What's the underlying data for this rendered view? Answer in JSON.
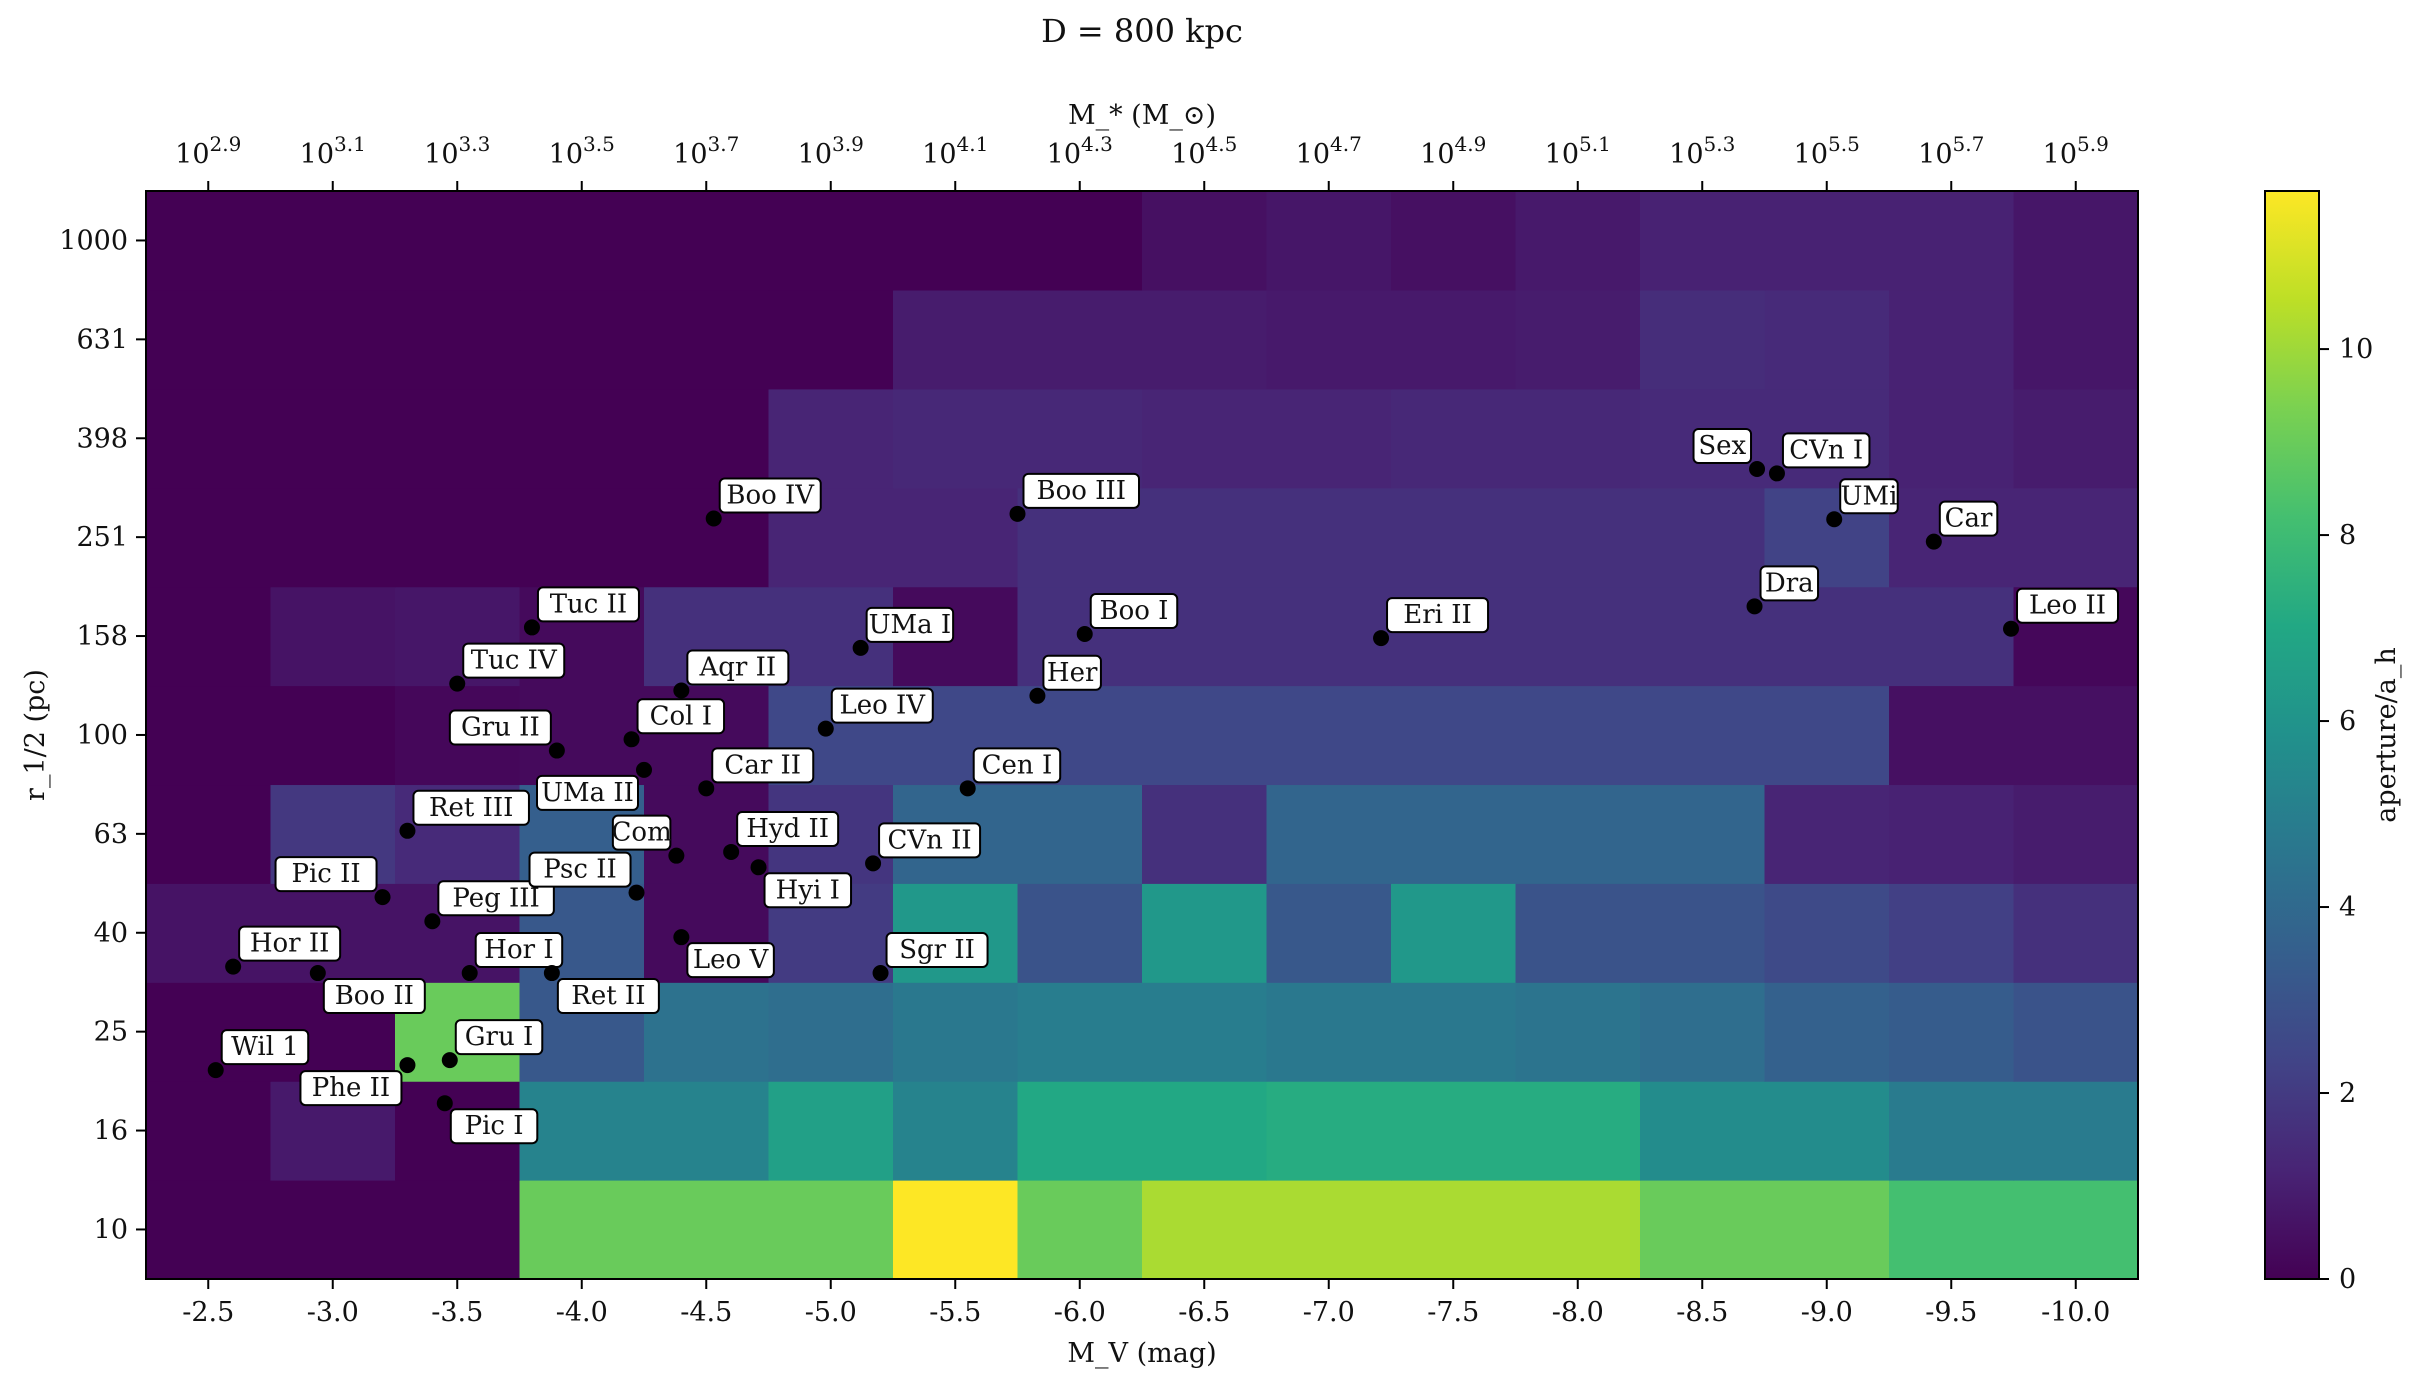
{
  "chart_data": {
    "type": "heatmap",
    "title": "D = 800 kpc",
    "xlabel": "M_V (mag)",
    "ylabel": "r_1/2 (pc)",
    "top_xlabel": "M_* (M_⊙)",
    "colorbar_label": "aperture/a_h",
    "colorbar_range": [
      0,
      11.7
    ],
    "colorbar_ticks": [
      "0",
      "2",
      "4",
      "6",
      "8",
      "10"
    ],
    "xlim": [
      -2.25,
      -10.25
    ],
    "x_ticks": [
      {
        "v": -2.5,
        "label": "-2.5"
      },
      {
        "v": -3.0,
        "label": "-3.0"
      },
      {
        "v": -3.5,
        "label": "-3.5"
      },
      {
        "v": -4.0,
        "label": "-4.0"
      },
      {
        "v": -4.5,
        "label": "-4.5"
      },
      {
        "v": -5.0,
        "label": "-5.0"
      },
      {
        "v": -5.5,
        "label": "-5.5"
      },
      {
        "v": -6.0,
        "label": "-6.0"
      },
      {
        "v": -6.5,
        "label": "-6.5"
      },
      {
        "v": -7.0,
        "label": "-7.0"
      },
      {
        "v": -7.5,
        "label": "-7.5"
      },
      {
        "v": -8.0,
        "label": "-8.0"
      },
      {
        "v": -8.5,
        "label": "-8.5"
      },
      {
        "v": -9.0,
        "label": "-9.0"
      },
      {
        "v": -9.5,
        "label": "-9.5"
      },
      {
        "v": -10.0,
        "label": "-10.0"
      }
    ],
    "top_ticks": [
      {
        "v": -2.5,
        "exp": "2.9"
      },
      {
        "v": -3.0,
        "exp": "3.1"
      },
      {
        "v": -3.5,
        "exp": "3.3"
      },
      {
        "v": -4.0,
        "exp": "3.5"
      },
      {
        "v": -4.5,
        "exp": "3.7"
      },
      {
        "v": -5.0,
        "exp": "3.9"
      },
      {
        "v": -5.5,
        "exp": "4.1"
      },
      {
        "v": -6.0,
        "exp": "4.3"
      },
      {
        "v": -6.5,
        "exp": "4.5"
      },
      {
        "v": -7.0,
        "exp": "4.7"
      },
      {
        "v": -7.5,
        "exp": "4.9"
      },
      {
        "v": -8.0,
        "exp": "5.1"
      },
      {
        "v": -8.5,
        "exp": "5.3"
      },
      {
        "v": -9.0,
        "exp": "5.5"
      },
      {
        "v": -9.5,
        "exp": "5.7"
      },
      {
        "v": -10.0,
        "exp": "5.9"
      }
    ],
    "y_scale": "log",
    "ylim": [
      7.94,
      1259
    ],
    "y_ticks": [
      "10",
      "16",
      "25",
      "40",
      "63",
      "100",
      "158",
      "251",
      "398",
      "631",
      "1000"
    ],
    "y_tick_values": [
      10,
      15.85,
      25.12,
      39.81,
      63.1,
      100,
      158.5,
      251.2,
      398.1,
      631,
      1000
    ],
    "col_edges": [
      -2.25,
      -2.75,
      -3.25,
      -3.75,
      -4.25,
      -4.75,
      -5.25,
      -5.75,
      -6.25,
      -6.75,
      -7.25,
      -7.75,
      -8.25,
      -8.75,
      -9.25,
      -9.75,
      -10.25
    ],
    "row_edges": [
      7.94,
      12.59,
      19.95,
      31.62,
      50.12,
      79.43,
      125.9,
      199.5,
      316.2,
      501.2,
      794.3,
      1259
    ],
    "z": [
      [
        0.0,
        0.0,
        0.0,
        9.0,
        9.0,
        9.0,
        11.7,
        9.0,
        10.2,
        10.2,
        10.2,
        10.2,
        9.0,
        9.0,
        8.2,
        8.2
      ],
      [
        0.0,
        0.8,
        0.0,
        5.2,
        5.2,
        6.6,
        5.2,
        7.0,
        7.0,
        7.2,
        7.2,
        7.2,
        5.6,
        5.6,
        4.8,
        4.8
      ],
      [
        0.0,
        0.0,
        9.0,
        3.2,
        4.4,
        4.2,
        4.7,
        4.9,
        4.9,
        4.7,
        4.7,
        4.5,
        4.2,
        3.6,
        3.4,
        3.0
      ],
      [
        0.6,
        0.6,
        0.6,
        3.2,
        0.3,
        2.0,
        6.2,
        3.0,
        6.2,
        3.2,
        6.2,
        3.0,
        3.0,
        2.6,
        2.2,
        1.6
      ],
      [
        0.0,
        1.9,
        1.4,
        3.5,
        0.3,
        1.8,
        3.8,
        3.8,
        1.6,
        3.8,
        3.8,
        3.8,
        3.8,
        1.2,
        1.1,
        0.9
      ],
      [
        0.0,
        0.0,
        0.2,
        0.3,
        0.3,
        2.5,
        2.5,
        2.5,
        2.5,
        2.5,
        2.5,
        2.5,
        2.5,
        2.5,
        0.5,
        0.5
      ],
      [
        0.0,
        0.6,
        0.7,
        0.3,
        1.6,
        1.6,
        0.3,
        1.6,
        1.6,
        1.6,
        1.6,
        1.6,
        1.6,
        1.6,
        1.6,
        0.2
      ],
      [
        0.0,
        0.0,
        0.0,
        0.0,
        0.0,
        1.2,
        1.2,
        1.6,
        1.6,
        1.6,
        1.6,
        1.6,
        1.6,
        2.3,
        1.2,
        1.2
      ],
      [
        0.0,
        0.0,
        0.0,
        0.0,
        0.0,
        1.2,
        1.3,
        1.3,
        1.2,
        1.2,
        1.3,
        1.3,
        1.4,
        1.4,
        1.1,
        0.9
      ],
      [
        0.0,
        0.0,
        0.0,
        0.0,
        0.0,
        0.0,
        0.9,
        0.9,
        0.9,
        0.8,
        0.8,
        0.9,
        1.5,
        1.4,
        1.1,
        0.7
      ],
      [
        0.0,
        0.0,
        0.0,
        0.0,
        0.0,
        0.0,
        0.0,
        0.0,
        0.5,
        0.7,
        0.5,
        0.8,
        1.1,
        1.1,
        1.1,
        0.7
      ]
    ],
    "galaxies": [
      {
        "name": "Wil 1",
        "mv": -2.53,
        "r": 21.0,
        "side": "ur"
      },
      {
        "name": "Hor II",
        "mv": -2.6,
        "r": 34.0,
        "side": "ur"
      },
      {
        "name": "Boo II",
        "mv": -2.94,
        "r": 33.0,
        "side": "lr"
      },
      {
        "name": "Pic II",
        "mv": -3.2,
        "r": 47.0,
        "side": "ul"
      },
      {
        "name": "Phe II",
        "mv": -3.3,
        "r": 21.5,
        "side": "ll"
      },
      {
        "name": "Ret III",
        "mv": -3.3,
        "r": 64.0,
        "side": "ur"
      },
      {
        "name": "Pic I",
        "mv": -3.45,
        "r": 18.0,
        "side": "lr"
      },
      {
        "name": "Gru I",
        "mv": -3.47,
        "r": 22.0,
        "side": "ur"
      },
      {
        "name": "Tuc IV",
        "mv": -3.5,
        "r": 127.0,
        "side": "ur"
      },
      {
        "name": "Peg III",
        "mv": -3.4,
        "r": 42.0,
        "side": "ur"
      },
      {
        "name": "Hor I",
        "mv": -3.55,
        "r": 33.0,
        "side": "ur"
      },
      {
        "name": "Tuc II",
        "mv": -3.8,
        "r": 165.0,
        "side": "ur"
      },
      {
        "name": "Gru II",
        "mv": -3.9,
        "r": 93.0,
        "side": "ul"
      },
      {
        "name": "Ret II",
        "mv": -3.88,
        "r": 33.0,
        "side": "lr"
      },
      {
        "name": "UMa II",
        "mv": -4.25,
        "r": 85.0,
        "side": "ll"
      },
      {
        "name": "Col I",
        "mv": -4.2,
        "r": 98.0,
        "side": "ur"
      },
      {
        "name": "Psc II",
        "mv": -4.22,
        "r": 48.0,
        "side": "ul"
      },
      {
        "name": "Com",
        "mv": -4.38,
        "r": 57.0,
        "side": "ul"
      },
      {
        "name": "Aqr II",
        "mv": -4.4,
        "r": 123.0,
        "side": "ur"
      },
      {
        "name": "Leo V",
        "mv": -4.4,
        "r": 39.0,
        "side": "lr"
      },
      {
        "name": "Car II",
        "mv": -4.5,
        "r": 78.0,
        "side": "ur"
      },
      {
        "name": "Boo IV",
        "mv": -4.53,
        "r": 274.0,
        "side": "ur"
      },
      {
        "name": "Hyd II",
        "mv": -4.6,
        "r": 58.0,
        "side": "ur"
      },
      {
        "name": "Hyi I",
        "mv": -4.71,
        "r": 54.0,
        "side": "lr"
      },
      {
        "name": "Leo IV",
        "mv": -4.98,
        "r": 103.0,
        "side": "ur"
      },
      {
        "name": "UMa I",
        "mv": -5.12,
        "r": 150.0,
        "side": "ur"
      },
      {
        "name": "CVn II",
        "mv": -5.17,
        "r": 55.0,
        "side": "ur"
      },
      {
        "name": "Sgr II",
        "mv": -5.2,
        "r": 33.0,
        "side": "ur"
      },
      {
        "name": "Cen I",
        "mv": -5.55,
        "r": 78.0,
        "side": "ur"
      },
      {
        "name": "Boo III",
        "mv": -5.75,
        "r": 280.0,
        "side": "ur"
      },
      {
        "name": "Her",
        "mv": -5.83,
        "r": 120.0,
        "side": "ur"
      },
      {
        "name": "Boo I",
        "mv": -6.02,
        "r": 160.0,
        "side": "ur"
      },
      {
        "name": "Eri II",
        "mv": -7.21,
        "r": 157.0,
        "side": "ur"
      },
      {
        "name": "Dra",
        "mv": -8.71,
        "r": 182.0,
        "side": "ur"
      },
      {
        "name": "Sex",
        "mv": -8.72,
        "r": 345.0,
        "side": "ul"
      },
      {
        "name": "CVn I",
        "mv": -8.8,
        "r": 338.0,
        "side": "ur"
      },
      {
        "name": "UMi",
        "mv": -9.03,
        "r": 273.0,
        "side": "ur"
      },
      {
        "name": "Car",
        "mv": -9.43,
        "r": 246.0,
        "side": "ur"
      },
      {
        "name": "Leo II",
        "mv": -9.74,
        "r": 164.0,
        "side": "ur"
      }
    ]
  }
}
